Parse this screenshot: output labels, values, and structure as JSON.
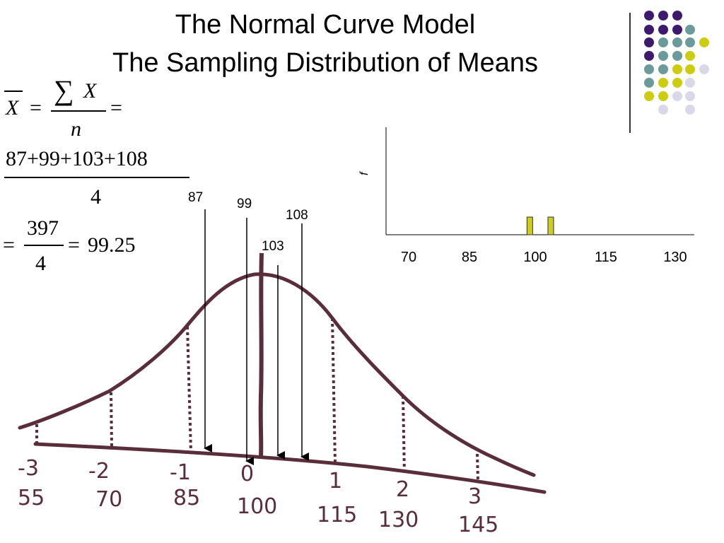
{
  "slide": {
    "title_line1": "The Normal Curve Model",
    "title_line2": "The Sampling Distribution of Means"
  },
  "formula": {
    "mean_symbol": "X",
    "equals": "=",
    "sum_symbol": "∑",
    "numerator_var": "X",
    "denominator_var": "n",
    "sum_numerator": "87+99+103+108",
    "sum_denominator": "4",
    "result_numerator": "397",
    "result_denominator": "4",
    "result_value": "99.25"
  },
  "arrows": [
    {
      "label": "87"
    },
    {
      "label": "99"
    },
    {
      "label": "103"
    },
    {
      "label": "108"
    }
  ],
  "normal_curve": {
    "z_labels": [
      "-3",
      "-2",
      "-1",
      "0",
      "1",
      "2",
      "3"
    ],
    "score_labels": [
      "55",
      "70",
      "85",
      "100",
      "115",
      "130",
      "145"
    ],
    "curve_color": "#5a2d3a"
  },
  "chart_data": {
    "type": "bar",
    "ylabel": "f",
    "xlabel": "",
    "x_ticks": [
      "70",
      "85",
      "100",
      "115",
      "130"
    ],
    "xlim": [
      65,
      135
    ],
    "bars": [
      {
        "x": 99.25,
        "value": 1
      },
      {
        "x": 103.75,
        "value": 1
      }
    ],
    "bar_color": "#cccc22",
    "grid": false
  },
  "decoration": {
    "dot_colors": {
      "purple": "#3d1a6e",
      "teal": "#6a9a9a",
      "yellow": "#cccc11",
      "lavender": "#d8d8e8"
    }
  }
}
